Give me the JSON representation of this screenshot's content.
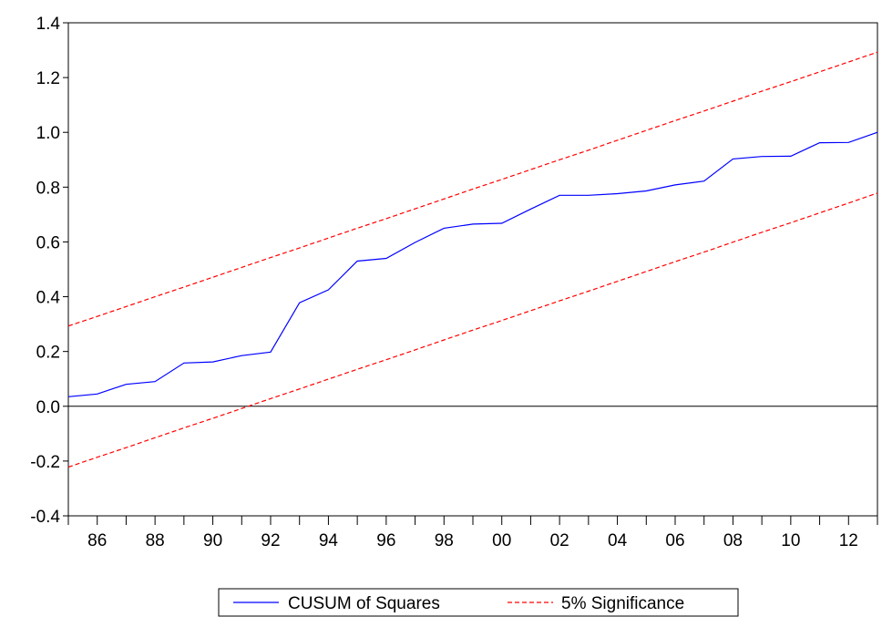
{
  "chart_data": {
    "type": "line",
    "title": "",
    "xlabel": "",
    "ylabel": "",
    "xlim": [
      1985,
      2013
    ],
    "ylim": [
      -0.4,
      1.4
    ],
    "y_ticks": [
      -0.4,
      -0.2,
      0.0,
      0.2,
      0.4,
      0.6,
      0.8,
      1.0,
      1.2,
      1.4
    ],
    "y_tick_labels": [
      "-0.4",
      "-0.2",
      "0.0",
      "0.2",
      "0.4",
      "0.6",
      "0.8",
      "1.0",
      "1.2",
      "1.4"
    ],
    "x_tick_years": [
      1986,
      1988,
      1990,
      1992,
      1994,
      1996,
      1998,
      2000,
      2002,
      2004,
      2006,
      2008,
      2010,
      2012
    ],
    "x_tick_labels": [
      "86",
      "88",
      "90",
      "92",
      "94",
      "96",
      "98",
      "00",
      "02",
      "04",
      "06",
      "08",
      "10",
      "12"
    ],
    "x": [
      1985,
      1986,
      1987,
      1988,
      1989,
      1990,
      1991,
      1992,
      1993,
      1994,
      1995,
      1996,
      1997,
      1998,
      1999,
      2000,
      2001,
      2002,
      2003,
      2004,
      2005,
      2006,
      2007,
      2008,
      2009,
      2010,
      2011,
      2012,
      2013
    ],
    "series": [
      {
        "name": "CUSUM of Squares",
        "color": "#0000ff",
        "style": "solid",
        "values": [
          0.035,
          0.045,
          0.08,
          0.09,
          0.158,
          0.162,
          0.185,
          0.198,
          0.378,
          0.425,
          0.53,
          0.54,
          0.598,
          0.65,
          0.665,
          0.668,
          0.72,
          0.77,
          0.77,
          0.776,
          0.786,
          0.808,
          0.822,
          0.903,
          0.912,
          0.913,
          0.962,
          0.963,
          1.0
        ]
      },
      {
        "name": "5% Significance",
        "color": "#ff0000",
        "style": "dashed",
        "values": [
          0.293,
          0.328,
          0.364,
          0.4,
          0.435,
          0.471,
          0.507,
          0.543,
          0.578,
          0.614,
          0.65,
          0.685,
          0.721,
          0.757,
          0.793,
          0.828,
          0.864,
          0.9,
          0.935,
          0.971,
          1.007,
          1.043,
          1.078,
          1.114,
          1.15,
          1.185,
          1.221,
          1.257,
          1.293
        ]
      },
      {
        "name": "5% Significance lower",
        "color": "#ff0000",
        "style": "dashed",
        "values": [
          -0.222,
          -0.186,
          -0.151,
          -0.115,
          -0.079,
          -0.044,
          -0.008,
          0.028,
          0.063,
          0.099,
          0.135,
          0.17,
          0.206,
          0.242,
          0.278,
          0.313,
          0.349,
          0.385,
          0.42,
          0.456,
          0.492,
          0.528,
          0.563,
          0.599,
          0.635,
          0.67,
          0.706,
          0.742,
          0.778
        ]
      }
    ],
    "zero_line": true,
    "grid": false,
    "legend": {
      "position": "bottom-center",
      "entries": [
        {
          "label": "CUSUM of Squares",
          "color": "#0000ff",
          "style": "solid"
        },
        {
          "label": "5% Significance",
          "color": "#ff0000",
          "style": "dashed"
        }
      ]
    }
  }
}
